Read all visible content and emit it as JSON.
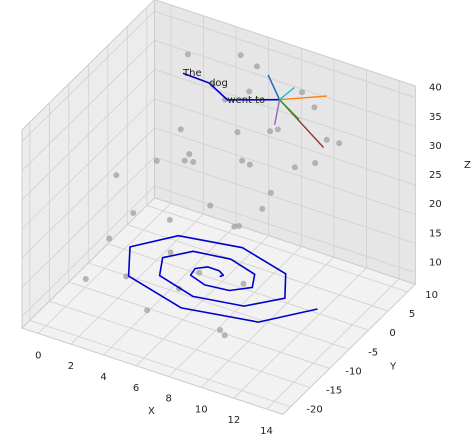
{
  "chart_data": {
    "type": "scatter3d",
    "xlabel": "X",
    "ylabel": "Y",
    "zlabel": "Z",
    "xlim": [
      -1,
      15
    ],
    "ylim": [
      -22,
      12
    ],
    "zlim": [
      8,
      42
    ],
    "xticks": [
      0,
      2,
      4,
      6,
      8,
      10,
      12,
      14
    ],
    "yticks": [
      -20,
      -15,
      -10,
      -5,
      0,
      5,
      10
    ],
    "zticks": [
      10,
      15,
      20,
      25,
      30,
      35,
      40
    ],
    "grid": true,
    "points": {
      "color": "#a0a0a0",
      "x": [
        2,
        4,
        6,
        8,
        10,
        3,
        5,
        7,
        9,
        11,
        4,
        6,
        8,
        10,
        12,
        5,
        7,
        9,
        11,
        6,
        0,
        1,
        2,
        3,
        4,
        5,
        6,
        7,
        8,
        9,
        1,
        3,
        5,
        7,
        9,
        2,
        4,
        6,
        8,
        10
      ],
      "y": [
        8,
        6,
        9,
        4,
        7,
        2,
        5,
        1,
        8,
        3,
        0,
        7,
        6,
        2,
        5,
        9,
        3,
        0,
        6,
        4,
        -2,
        -8,
        0,
        -12,
        -5,
        -15,
        -3,
        -10,
        2,
        -7,
        -14,
        3,
        -9,
        -1,
        -13,
        -6,
        1,
        -11,
        -4,
        -16
      ],
      "z": [
        38,
        36,
        39,
        33,
        37,
        30,
        35,
        29,
        38,
        31,
        28,
        36,
        32,
        30,
        34,
        40,
        27,
        26,
        33,
        31,
        22,
        16,
        25,
        14,
        20,
        12,
        23,
        17,
        21,
        15,
        13,
        24,
        18,
        19,
        11,
        20,
        26,
        14,
        22,
        13
      ]
    },
    "lines": [
      {
        "color": "#0000cc",
        "x": [
          7.3,
          7.4,
          7,
          6.3,
          5.8,
          5.9,
          7,
          8.4,
          9.3,
          8.8,
          7,
          4.9,
          3.8,
          4.5,
          7,
          9.8,
          11.3,
          10.2,
          7,
          3.5,
          1.8,
          3.1,
          7,
          11.2,
          13.3
        ],
        "y": [
          -6,
          -5.5,
          -4.9,
          -4.9,
          -6,
          -7.6,
          -8.6,
          -8.1,
          -6,
          -3.3,
          -1.9,
          -2.8,
          -6,
          -9.7,
          -11.6,
          -10.2,
          -6,
          -1.2,
          1.1,
          -0.7,
          -6,
          -11.8,
          -14.6,
          -12.4,
          -6
        ],
        "z": [
          14,
          14,
          14,
          14,
          14,
          14,
          14,
          14,
          14,
          14,
          14,
          14,
          14,
          14,
          14,
          14,
          14,
          14,
          14,
          14,
          14,
          14,
          14,
          14,
          14
        ]
      },
      {
        "color": "#0000cc",
        "x": [
          1.7,
          3.3,
          4.9,
          8.1
        ],
        "y": [
          8,
          8,
          6,
          6
        ],
        "z": [
          34.5,
          34.3,
          34.2,
          37.2
        ]
      }
    ],
    "vectors": {
      "origin": [
        8.1,
        6,
        37.2
      ],
      "ends": [
        {
          "color": "#ff7f0e",
          "x": 11,
          "y": 6,
          "z": 40.5
        },
        {
          "color": "#8c3a2a",
          "x": 10.8,
          "y": 6,
          "z": 31.5
        },
        {
          "color": "#1f5fb4",
          "x": 7.4,
          "y": 6,
          "z": 40.8
        },
        {
          "color": "#2ca02c",
          "x": 9.3,
          "y": 6,
          "z": 34.9
        },
        {
          "color": "#9467bd",
          "x": 7.8,
          "y": 6,
          "z": 32.6
        },
        {
          "color": "#17becf",
          "x": 9,
          "y": 6,
          "z": 40.1
        }
      ]
    },
    "annotations": [
      {
        "text": "The",
        "x": 1.7,
        "y": 8,
        "z": 34.5
      },
      {
        "text": "dog",
        "x": 3.3,
        "y": 8,
        "z": 34.3
      },
      {
        "text": "went to",
        "x": 4.9,
        "y": 6,
        "z": 34.2
      }
    ]
  }
}
